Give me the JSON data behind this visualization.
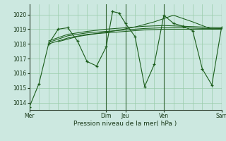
{
  "bg_color": "#cce8e0",
  "grid_color": "#99ccaa",
  "line_color": "#1a5c1a",
  "vline_color": "#336633",
  "xlim": [
    0,
    120
  ],
  "ylim": [
    1013.5,
    1020.7
  ],
  "yticks": [
    1014,
    1015,
    1016,
    1017,
    1018,
    1019,
    1020
  ],
  "xtick_positions": [
    0,
    48,
    60,
    84,
    120
  ],
  "xtick_labels": [
    "Mer",
    "Dim",
    "Jeu",
    "Ven",
    "Sam"
  ],
  "vline_positions": [
    0,
    48,
    60,
    84,
    120
  ],
  "xlabel": "Pression niveau de la mer( hPa )",
  "series": [
    {
      "x": [
        0,
        6,
        12,
        18,
        24,
        30,
        36,
        42,
        48,
        52,
        56,
        60,
        66,
        72,
        78,
        84,
        90,
        96,
        102,
        108,
        114,
        120
      ],
      "y": [
        1013.7,
        1015.3,
        1018.0,
        1019.0,
        1019.1,
        1018.2,
        1016.8,
        1016.5,
        1017.8,
        1020.2,
        1020.1,
        1019.4,
        1018.5,
        1015.1,
        1016.6,
        1019.95,
        1019.4,
        1019.2,
        1018.9,
        1016.3,
        1015.2,
        1019.1
      ],
      "marker": true
    },
    {
      "x": [
        12,
        24,
        36,
        48,
        60,
        72,
        84,
        96,
        108,
        120
      ],
      "y": [
        1018.1,
        1018.55,
        1018.75,
        1018.85,
        1018.95,
        1019.05,
        1019.1,
        1019.1,
        1019.05,
        1019.05
      ],
      "marker": false
    },
    {
      "x": [
        12,
        24,
        36,
        48,
        60,
        72,
        84,
        96,
        108,
        120
      ],
      "y": [
        1018.0,
        1018.4,
        1018.65,
        1018.75,
        1018.85,
        1018.95,
        1019.0,
        1019.0,
        1019.0,
        1019.0
      ],
      "marker": false
    },
    {
      "x": [
        12,
        24,
        36,
        48,
        60,
        72,
        84,
        96,
        108,
        120
      ],
      "y": [
        1018.2,
        1018.65,
        1018.85,
        1019.0,
        1019.1,
        1019.2,
        1019.25,
        1019.2,
        1019.15,
        1019.1
      ],
      "marker": false
    },
    {
      "x": [
        18,
        30,
        42,
        54,
        66,
        78,
        90,
        102,
        114,
        120
      ],
      "y": [
        1018.15,
        1018.5,
        1018.7,
        1018.9,
        1019.15,
        1019.5,
        1019.95,
        1019.5,
        1019.0,
        1019.05
      ],
      "marker": false
    }
  ]
}
